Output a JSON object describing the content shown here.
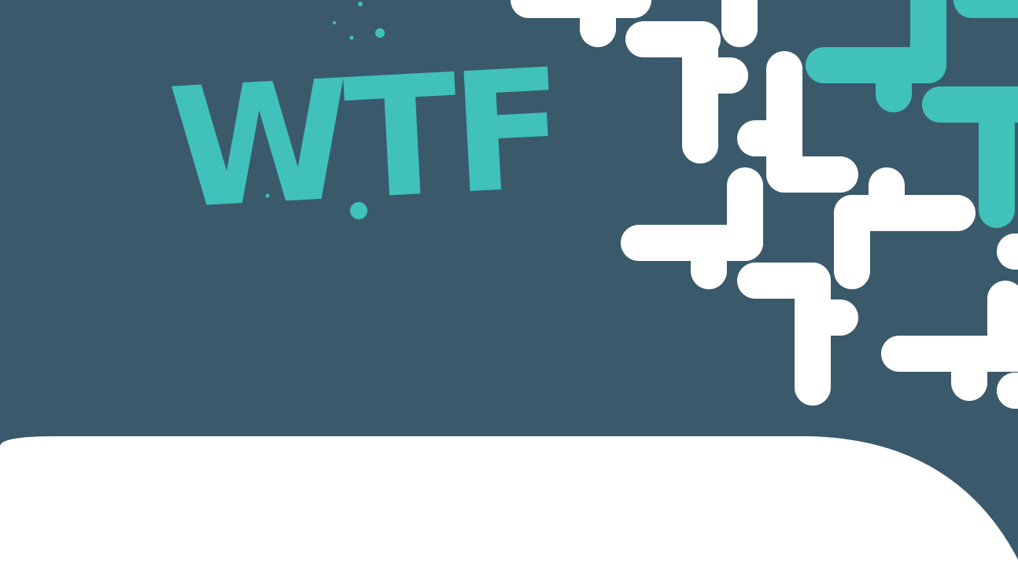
{
  "logo": {
    "text": "WTF"
  }
}
